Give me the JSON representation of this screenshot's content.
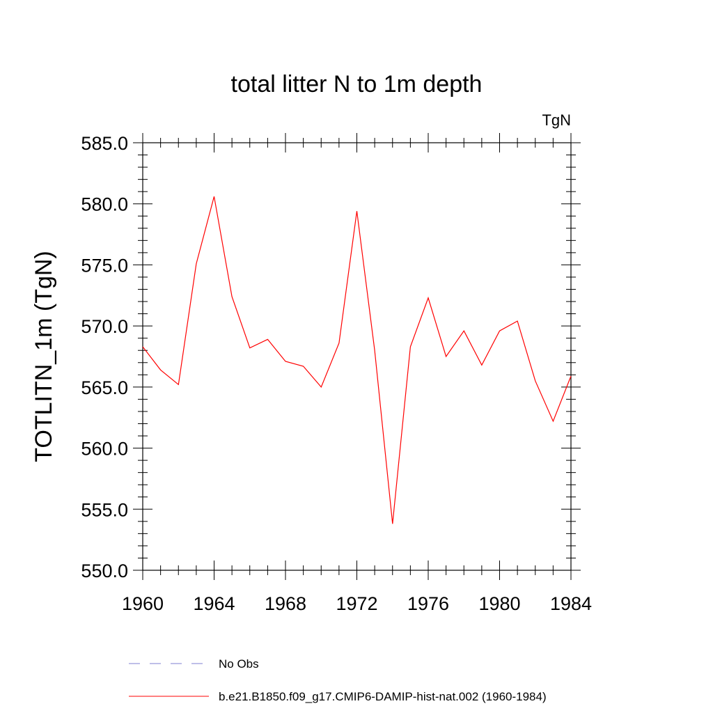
{
  "chart_data": {
    "type": "line",
    "title": "total litter N to 1m depth",
    "units": "TgN",
    "ylabel": "TOTLITN_1m  (TgN)",
    "xlabel": "",
    "xlim": [
      1960,
      1984
    ],
    "ylim": [
      550,
      585
    ],
    "x_ticks": [
      1960,
      1964,
      1968,
      1972,
      1976,
      1980,
      1984
    ],
    "y_ticks": [
      "550.0",
      "555.0",
      "560.0",
      "565.0",
      "570.0",
      "575.0",
      "580.0",
      "585.0"
    ],
    "grid": false,
    "legend_position": "bottom",
    "series": [
      {
        "name": "b.e21.B1850.f09_g17.CMIP6-DAMIP-hist-nat.002 (1960-1984)",
        "color": "#ff0000",
        "dash": "solid",
        "x": [
          1960,
          1961,
          1962,
          1963,
          1964,
          1965,
          1966,
          1967,
          1968,
          1969,
          1970,
          1971,
          1972,
          1973,
          1974,
          1975,
          1976,
          1977,
          1978,
          1979,
          1980,
          1981,
          1982,
          1983,
          1984
        ],
        "y": [
          568.3,
          566.4,
          565.2,
          575.1,
          580.6,
          572.4,
          568.2,
          568.9,
          567.1,
          566.7,
          565.0,
          568.6,
          579.4,
          568.0,
          553.8,
          568.3,
          572.3,
          567.5,
          569.6,
          566.8,
          569.6,
          570.4,
          565.5,
          562.2,
          565.9
        ]
      },
      {
        "name": "No Obs",
        "color": "#7f7fd0",
        "dash": "dashed",
        "x": [],
        "y": []
      }
    ]
  }
}
